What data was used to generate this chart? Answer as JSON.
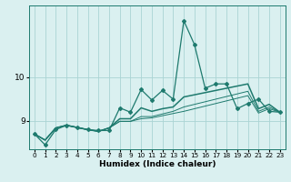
{
  "xlabel": "Humidex (Indice chaleur)",
  "bg_color": "#daf0f0",
  "grid_color": "#aad4d4",
  "line_color": "#1e7a6e",
  "xlim": [
    -0.5,
    23.5
  ],
  "ylim": [
    8.35,
    11.65
  ],
  "yticks": [
    9,
    10
  ],
  "xticks": [
    0,
    1,
    2,
    3,
    4,
    5,
    6,
    7,
    8,
    9,
    10,
    11,
    12,
    13,
    14,
    15,
    16,
    17,
    18,
    19,
    20,
    21,
    22,
    23
  ],
  "series_main": [
    8.7,
    8.45,
    8.8,
    8.9,
    8.85,
    8.8,
    8.78,
    8.78,
    9.3,
    9.2,
    9.72,
    9.48,
    9.7,
    9.5,
    11.3,
    10.75,
    9.75,
    9.85,
    9.85,
    9.28,
    9.4,
    9.5,
    9.22,
    9.2
  ],
  "series2": [
    8.7,
    8.56,
    8.84,
    8.9,
    8.85,
    8.8,
    8.76,
    8.84,
    9.05,
    9.05,
    9.3,
    9.22,
    9.28,
    9.32,
    9.55,
    9.6,
    9.65,
    9.7,
    9.75,
    9.8,
    9.85,
    9.28,
    9.38,
    9.2
  ],
  "series3": [
    8.7,
    8.56,
    8.84,
    8.9,
    8.85,
    8.8,
    8.76,
    8.84,
    8.99,
    8.99,
    9.1,
    9.1,
    9.16,
    9.22,
    9.32,
    9.38,
    9.44,
    9.5,
    9.56,
    9.62,
    9.68,
    9.22,
    9.32,
    9.2
  ],
  "series4": [
    8.7,
    8.56,
    8.84,
    8.9,
    8.85,
    8.8,
    8.76,
    8.84,
    8.99,
    8.99,
    9.05,
    9.07,
    9.12,
    9.17,
    9.22,
    9.28,
    9.34,
    9.4,
    9.46,
    9.52,
    9.58,
    9.18,
    9.28,
    9.2
  ]
}
